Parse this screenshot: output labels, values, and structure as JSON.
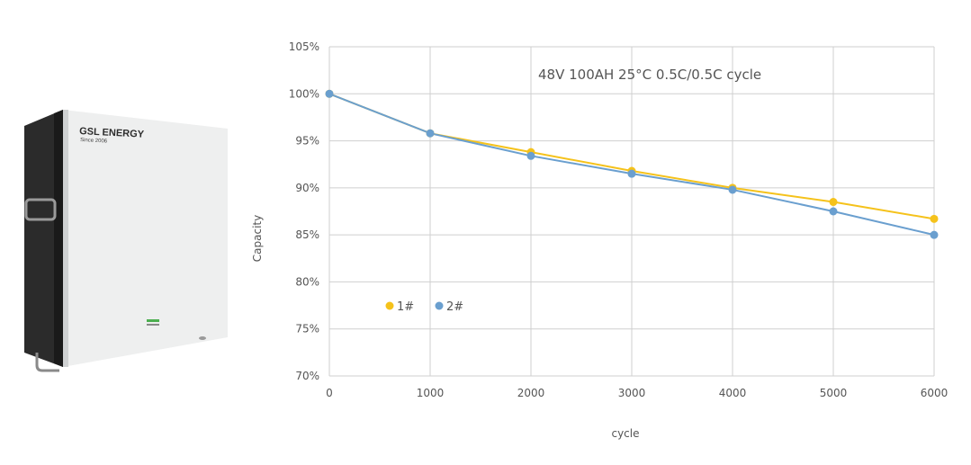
{
  "product": {
    "brand": "GSL ENERGY",
    "tagline": "Since 2006"
  },
  "chart_data": {
    "type": "line",
    "title": "48V 100AH 25°C 0.5C/0.5C cycle",
    "xlabel": "cycle",
    "ylabel": "Capacity",
    "x": [
      0,
      1000,
      2000,
      3000,
      4000,
      5000,
      6000
    ],
    "x_ticks": [
      "0",
      "1000",
      "2000",
      "3000",
      "4000",
      "5000",
      "6000"
    ],
    "y_ticks": [
      "70%",
      "75%",
      "80%",
      "85%",
      "90%",
      "95%",
      "100%",
      "105%"
    ],
    "xlim": [
      0,
      6000
    ],
    "ylim": [
      70,
      105
    ],
    "grid": true,
    "legend_placement": "lower-left inside plot",
    "series": [
      {
        "name": "1#",
        "color": "#f5c21b",
        "values": [
          100,
          95.8,
          93.8,
          91.8,
          90.0,
          88.5,
          86.7
        ]
      },
      {
        "name": "2#",
        "color": "#6a9fcf",
        "values": [
          100,
          95.8,
          93.4,
          91.5,
          89.8,
          87.5,
          85.0
        ]
      }
    ]
  }
}
